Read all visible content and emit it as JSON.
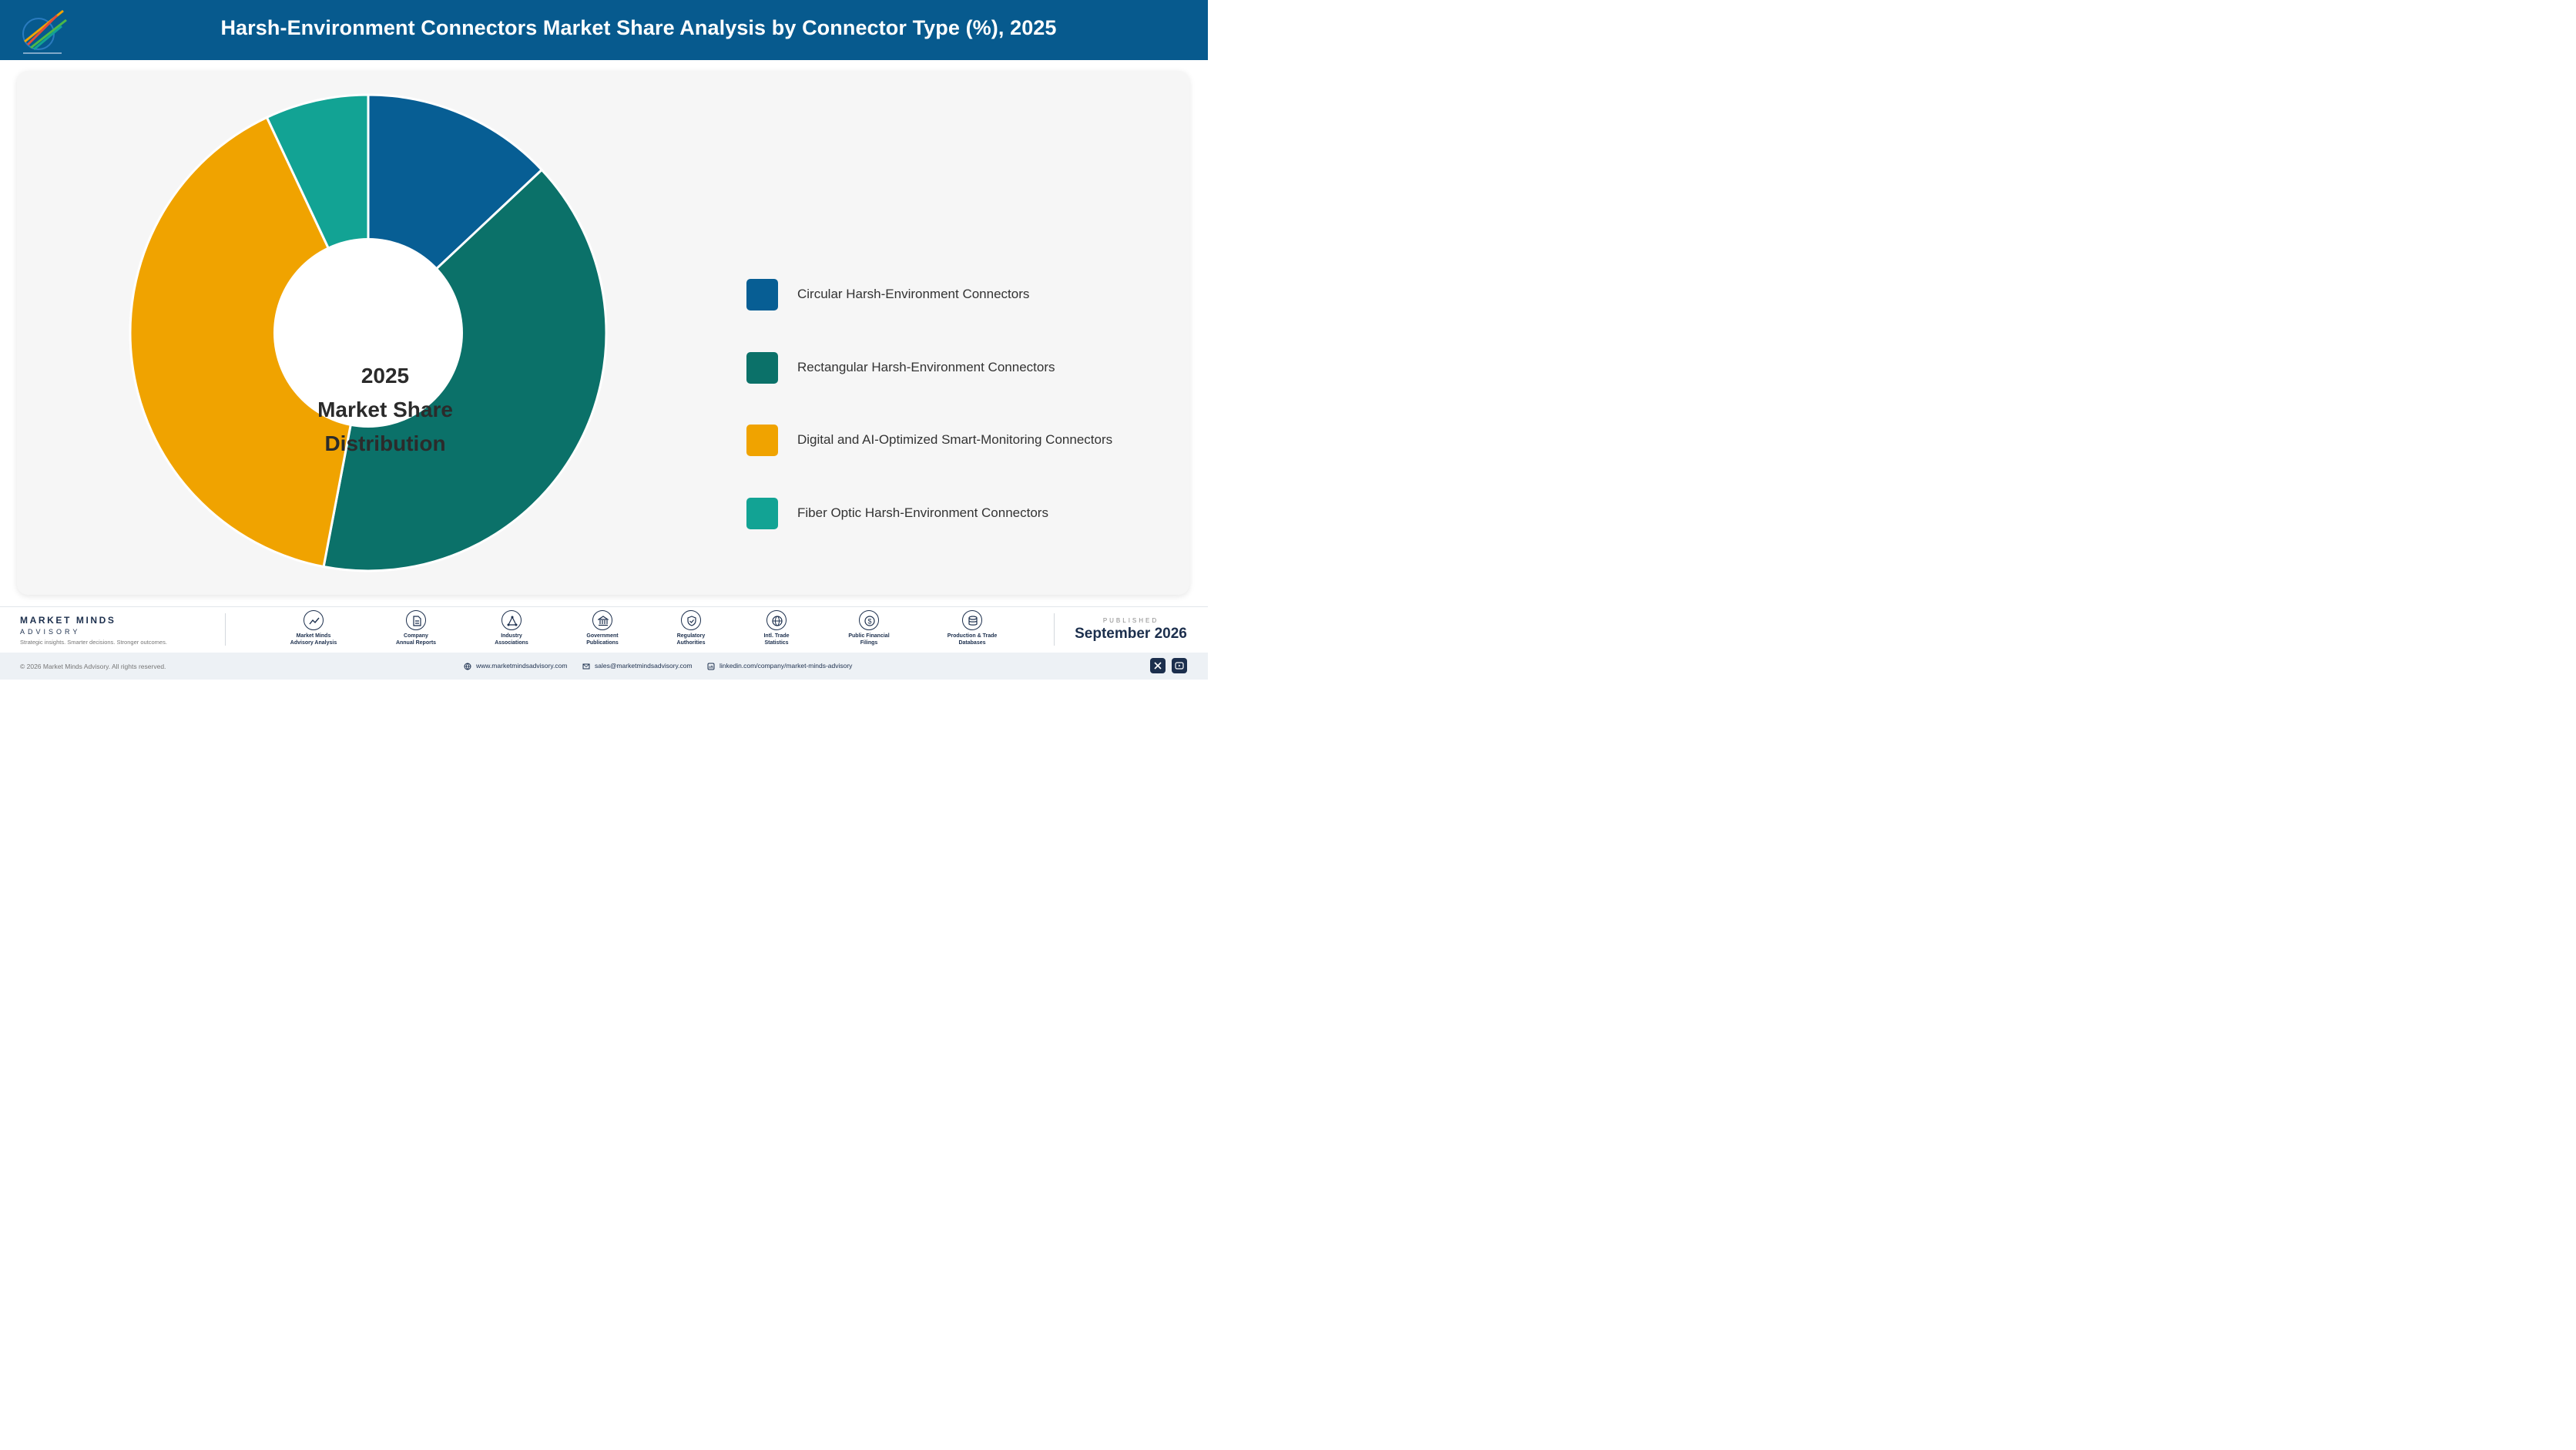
{
  "header": {
    "title": "Harsh-Environment Connectors Market Share Analysis by Connector Type (%), 2025",
    "logo_icon": "market-minds-logo"
  },
  "chart_data": {
    "type": "pie",
    "donut": true,
    "center_label": [
      "2025",
      "Market Share",
      "Distribution"
    ],
    "categories": [
      "Circular Harsh-Environment Connectors",
      "Rectangular Harsh-Environment Connectors",
      "Digital and AI-Optimized Smart-Monitoring Connectors",
      "Fiber Optic Harsh-Environment Connectors"
    ],
    "values": [
      13,
      40,
      40,
      7
    ],
    "colors": [
      "#075e94",
      "#0b7169",
      "#f0a300",
      "#12a394"
    ],
    "legend_position": "right"
  },
  "footer": {
    "brand_name": "MARKET MINDS",
    "brand_sub": "ADVISORY",
    "tagline": "Strategic insights. Smarter decisions. Stronger outcomes.",
    "sources": [
      {
        "line1": "Market Minds",
        "line2": "Advisory Analysis",
        "icon": "trend-chart-icon"
      },
      {
        "line1": "Company",
        "line2": "Annual Reports",
        "icon": "document-icon"
      },
      {
        "line1": "Industry",
        "line2": "Associations",
        "icon": "network-icon"
      },
      {
        "line1": "Government",
        "line2": "Publications",
        "icon": "bank-icon"
      },
      {
        "line1": "Regulatory",
        "line2": "Authorities",
        "icon": "shield-icon"
      },
      {
        "line1": "Intl. Trade",
        "line2": "Statistics",
        "icon": "globe-icon"
      },
      {
        "line1": "Public Financial",
        "line2": "Filings",
        "icon": "dollar-icon"
      },
      {
        "line1": "Production & Trade",
        "line2": "Databases",
        "icon": "database-icon"
      }
    ],
    "published_label": "PUBLISHED",
    "published_date": "September 2026",
    "copyright": "© 2026 Market Minds Advisory. All rights reserved.",
    "website": "www.marketmindsadvisory.com",
    "email": "sales@marketmindsadvisory.com",
    "linkedin": "linkedin.com/company/market-minds-advisory",
    "social": [
      "x-icon",
      "youtube-icon"
    ]
  }
}
